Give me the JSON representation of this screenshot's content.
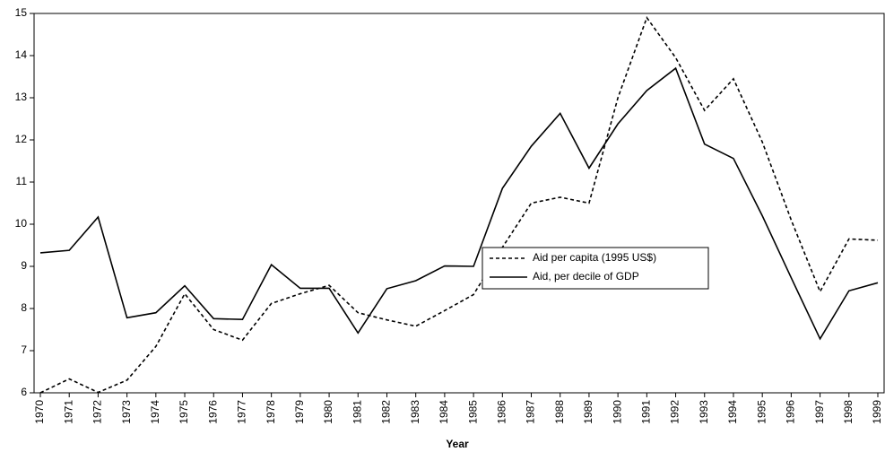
{
  "chart_data": {
    "type": "line",
    "x_label": "Year",
    "categories": [
      "1970",
      "1971",
      "1972",
      "1973",
      "1974",
      "1975",
      "1976",
      "1977",
      "1978",
      "1979",
      "1980",
      "1981",
      "1982",
      "1983",
      "1984",
      "1985",
      "1986",
      "1987",
      "1988",
      "1989",
      "1990",
      "1991",
      "1992",
      "1993",
      "1994",
      "1995",
      "1996",
      "1997",
      "1998",
      "1999"
    ],
    "series": [
      {
        "name": "Aid per capita (1995 US$)",
        "color": "#000000",
        "line_style": "dotted",
        "values": [
          6.0,
          6.33,
          6.01,
          6.3,
          7.1,
          8.35,
          7.5,
          7.25,
          8.12,
          8.35,
          8.55,
          7.9,
          7.73,
          7.58,
          7.95,
          8.33,
          9.45,
          10.5,
          10.64,
          10.5,
          13.0,
          14.9,
          13.95,
          12.7,
          13.45,
          11.95,
          10.1,
          8.4,
          9.65,
          9.62
        ]
      },
      {
        "name": "Aid, per decile of GDP",
        "color": "#000000",
        "line_style": "solid",
        "values": [
          9.32,
          9.38,
          10.17,
          7.78,
          7.9,
          8.54,
          7.76,
          7.74,
          9.04,
          8.48,
          8.48,
          7.42,
          8.47,
          8.66,
          9.01,
          9.0,
          10.85,
          11.85,
          12.63,
          11.33,
          12.38,
          13.17,
          13.7,
          11.9,
          11.56,
          10.2,
          8.73,
          7.28,
          8.42,
          8.61
        ]
      }
    ],
    "ylim": [
      6,
      15
    ],
    "yticks": [
      6,
      7,
      8,
      9,
      10,
      11,
      12,
      13,
      14,
      15
    ],
    "grid": false
  }
}
